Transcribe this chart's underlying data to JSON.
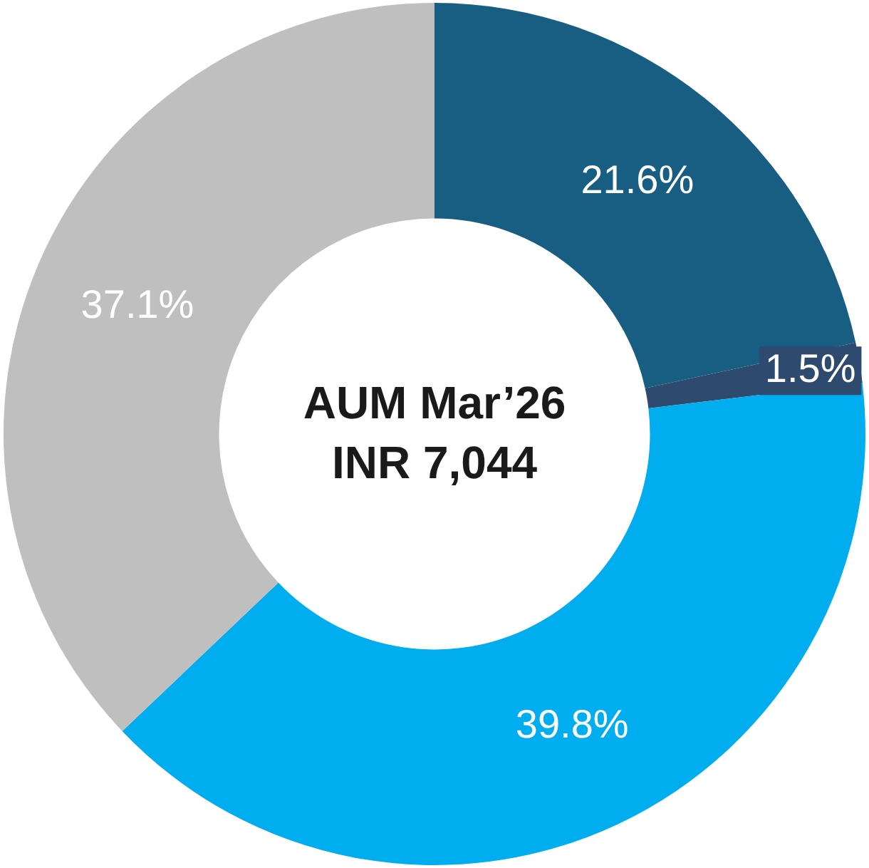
{
  "chart_data": {
    "type": "donut",
    "title": "AUM Mar’26",
    "subtitle": "INR 7,044",
    "categories": [
      null,
      null,
      null,
      null
    ],
    "values": [
      21.6,
      1.5,
      39.8,
      37.1
    ],
    "colors": [
      "#175e82",
      "#2e4a6e",
      "#00aeef",
      "#bfbfbf"
    ],
    "value_labels": [
      "21.6%",
      "1.5%",
      "39.8%",
      "37.1%"
    ],
    "legend": false
  }
}
